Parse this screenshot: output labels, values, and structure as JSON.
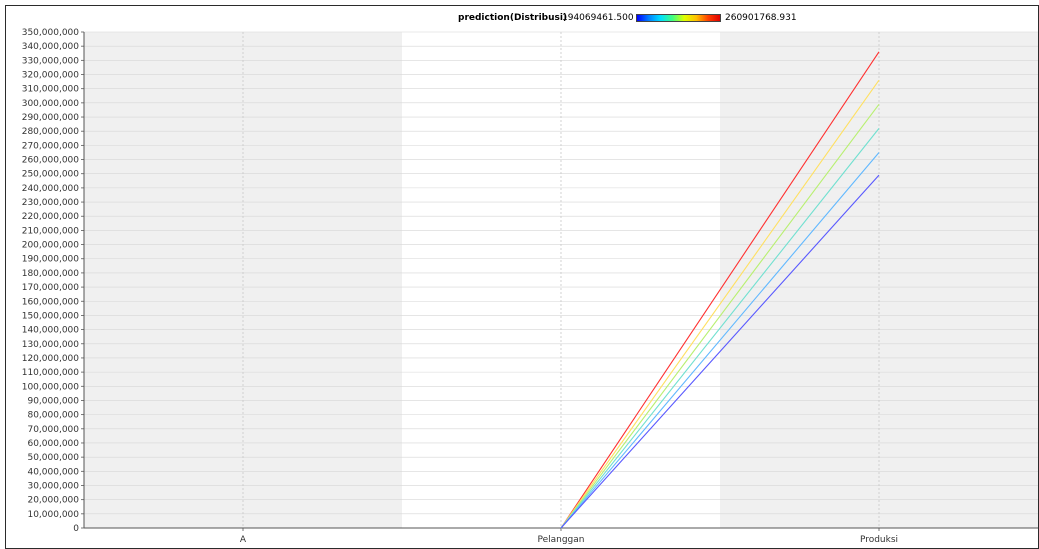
{
  "legend": {
    "title": "prediction(Distribusi)",
    "min_label": "194069461.500",
    "max_label": "260901768.931"
  },
  "colors": {
    "band_shaded": "#f0f0f0",
    "band_plain": "#ffffff",
    "grid": "#d6d6d6",
    "axis": "#555555"
  },
  "chart_data": {
    "type": "line",
    "subtype": "parallel-coordinates",
    "categories": [
      "A",
      "Pelanggan",
      "Produksi"
    ],
    "ylim": [
      0,
      350000000
    ],
    "y_ticks": [
      0,
      10000000,
      20000000,
      30000000,
      40000000,
      50000000,
      60000000,
      70000000,
      80000000,
      90000000,
      100000000,
      110000000,
      120000000,
      130000000,
      140000000,
      150000000,
      160000000,
      170000000,
      180000000,
      190000000,
      200000000,
      210000000,
      220000000,
      230000000,
      240000000,
      250000000,
      260000000,
      270000000,
      280000000,
      290000000,
      300000000,
      310000000,
      320000000,
      330000000,
      340000000,
      350000000
    ],
    "y_tick_labels": [
      "0",
      "10,000,000",
      "20,000,000",
      "30,000,000",
      "40,000,000",
      "50,000,000",
      "60,000,000",
      "70,000,000",
      "80,000,000",
      "90,000,000",
      "100,000,000",
      "110,000,000",
      "120,000,000",
      "130,000,000",
      "140,000,000",
      "150,000,000",
      "160,000,000",
      "170,000,000",
      "180,000,000",
      "190,000,000",
      "200,000,000",
      "210,000,000",
      "220,000,000",
      "230,000,000",
      "240,000,000",
      "250,000,000",
      "260,000,000",
      "270,000,000",
      "280,000,000",
      "290,000,000",
      "300,000,000",
      "310,000,000",
      "320,000,000",
      "330,000,000",
      "340,000,000",
      "350,000,000"
    ],
    "grid": true,
    "legend_position": "top-center",
    "series": [
      {
        "color": "#ff3030",
        "points": [
          [
            1,
            0
          ],
          [
            2,
            336000000
          ]
        ]
      },
      {
        "color": "#ffe060",
        "points": [
          [
            1,
            0
          ],
          [
            2,
            316000000
          ]
        ]
      },
      {
        "color": "#b8f070",
        "points": [
          [
            1,
            0
          ],
          [
            2,
            299000000
          ]
        ]
      },
      {
        "color": "#70e0d0",
        "points": [
          [
            1,
            0
          ],
          [
            2,
            282000000
          ]
        ]
      },
      {
        "color": "#60b8ff",
        "points": [
          [
            1,
            0
          ],
          [
            2,
            265000000
          ]
        ]
      },
      {
        "color": "#5858ff",
        "points": [
          [
            1,
            0
          ],
          [
            2,
            249000000
          ]
        ]
      }
    ]
  }
}
